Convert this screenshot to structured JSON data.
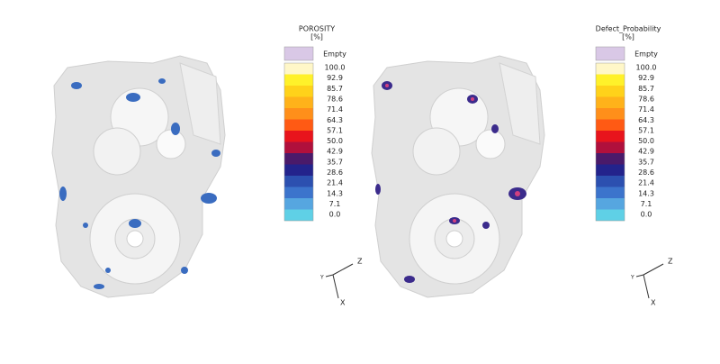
{
  "panels": [
    {
      "title": "POROSITY",
      "unit": "[%]",
      "empty_label": "Empty",
      "levels": [
        "100.0",
        "92.9",
        "85.7",
        "78.6",
        "71.4",
        "64.3",
        "57.1",
        "50.0",
        "42.9",
        "35.7",
        "28.6",
        "21.4",
        "14.3",
        "7.1",
        "0.0"
      ]
    },
    {
      "title": "Defect_Probability",
      "unit": "[%]",
      "empty_label": "Empty",
      "levels": [
        "100.0",
        "92.9",
        "85.7",
        "78.6",
        "71.4",
        "64.3",
        "57.1",
        "50.0",
        "42.9",
        "35.7",
        "28.6",
        "21.4",
        "14.3",
        "7.1",
        "0.0"
      ]
    }
  ],
  "band_colors": [
    "#fff7c8",
    "#fff12a",
    "#ffd21a",
    "#ffb21a",
    "#ff8f1a",
    "#ff5a14",
    "#e8141c",
    "#b0103c",
    "#4a1a6a",
    "#23238c",
    "#2c50b0",
    "#3c74cc",
    "#56a6e0",
    "#5fd0e6"
  ],
  "empty_color": "#d9c8e6",
  "axis_labels": {
    "z": "Z",
    "y": "Y",
    "x": "X"
  }
}
